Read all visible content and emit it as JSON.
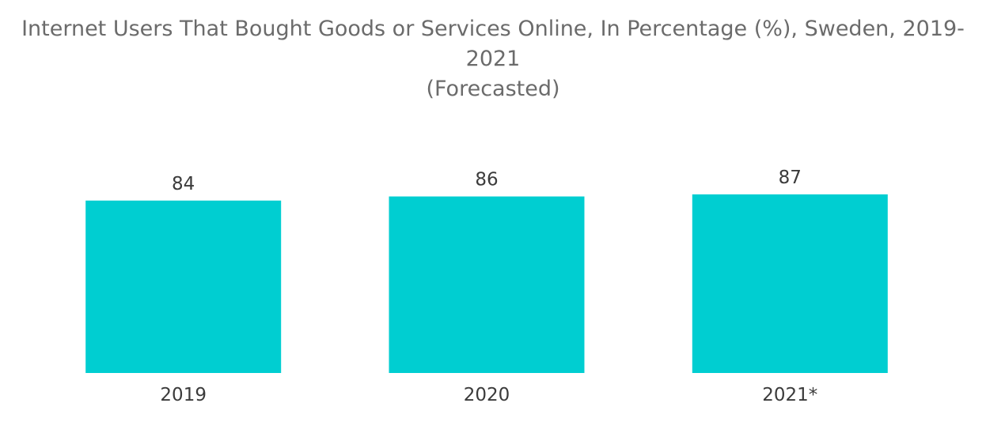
{
  "title_line1": "Internet Users That Bought Goods or Services Online, In Percentage (%), Sweden, 2019-2021",
  "title_line2": "(Forecasted)",
  "chart_data": {
    "type": "bar",
    "title": "Internet Users That Bought Goods or Services Online, In Percentage (%), Sweden, 2019-2021 (Forecasted)",
    "categories": [
      "2019",
      "2020",
      "2021*"
    ],
    "values": [
      84,
      86,
      87
    ],
    "data_labels": [
      "84",
      "86",
      "87"
    ],
    "xlabel": "",
    "ylabel": "",
    "ylim": [
      0,
      87
    ],
    "grid": false,
    "legend": "none",
    "bar_color": "#00CED1"
  }
}
